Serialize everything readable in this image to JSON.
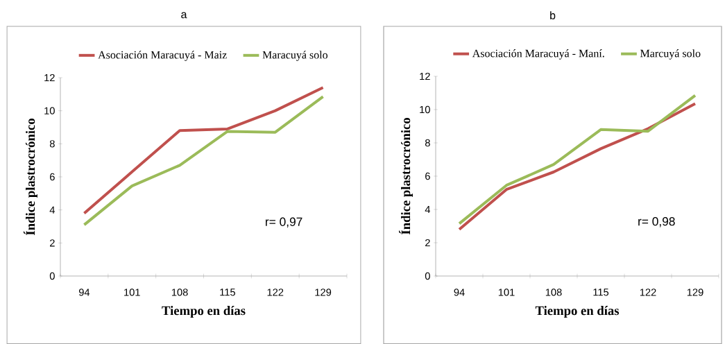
{
  "chart_data": [
    {
      "type": "line",
      "title": "a",
      "xlabel": "Tiempo en días",
      "ylabel": "Índice  plastrocrónico",
      "categories": [
        "94",
        "101",
        "108",
        "115",
        "122",
        "129"
      ],
      "series": [
        {
          "name": "Asociación Maracuyá - Maiz",
          "color": "#c0504d",
          "values": [
            3.8,
            6.3,
            8.8,
            8.9,
            10.0,
            11.4
          ]
        },
        {
          "name": "Maracuyá solo",
          "color": "#9bbb59",
          "values": [
            3.1,
            5.45,
            6.7,
            8.75,
            8.7,
            10.85
          ]
        }
      ],
      "ylim": [
        0,
        12
      ],
      "yticks": [
        0,
        2,
        4,
        6,
        8,
        10,
        12
      ],
      "legend": "top",
      "annotations": [
        "r= 0,97"
      ]
    },
    {
      "type": "line",
      "title": "b",
      "xlabel": "Tiempo en días",
      "ylabel": "Índice  plastrocrónico",
      "categories": [
        "94",
        "101",
        "108",
        "115",
        "122",
        "129"
      ],
      "series": [
        {
          "name": "Asociación Maracuyá - Maní.",
          "color": "#c0504d",
          "values": [
            2.8,
            5.2,
            6.25,
            7.65,
            8.85,
            10.35
          ]
        },
        {
          "name": "Marcuyá solo",
          "color": "#9bbb59",
          "values": [
            3.15,
            5.45,
            6.7,
            8.8,
            8.7,
            10.85
          ]
        }
      ],
      "ylim": [
        0,
        12
      ],
      "yticks": [
        0,
        2,
        4,
        6,
        8,
        10,
        12
      ],
      "legend": "top",
      "annotations": [
        "r= 0,98"
      ]
    }
  ]
}
